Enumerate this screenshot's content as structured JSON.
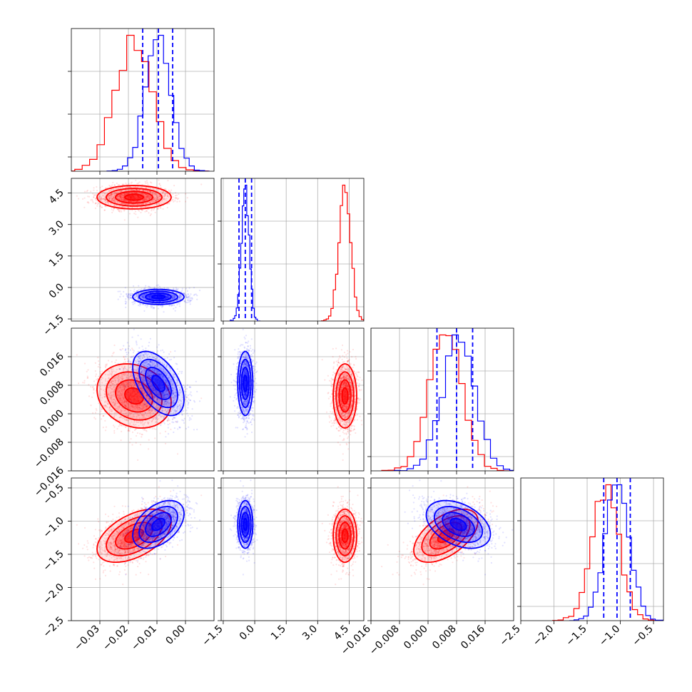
{
  "chart_data": {
    "type": "corner",
    "title": "",
    "parameters": [
      {
        "range": [
          -0.04,
          0.01
        ],
        "ticks": [
          -0.03,
          -0.02,
          -0.01,
          0.0
        ],
        "tick_labels": [
          "−0.03",
          "−0.02",
          "−0.01",
          "0.00"
        ]
      },
      {
        "range": [
          -1.6,
          5.2
        ],
        "ticks": [
          -1.5,
          0.0,
          1.5,
          3.0,
          4.5
        ],
        "tick_labels": [
          "−1.5",
          "0.0",
          "1.5",
          "3.0",
          "4.5"
        ]
      },
      {
        "range": [
          -0.016,
          0.024
        ],
        "ticks": [
          -0.016,
          -0.008,
          0.0,
          0.008,
          0.016
        ],
        "tick_labels": [
          "−0.016",
          "−0.008",
          "0.000",
          "0.008",
          "0.016"
        ]
      },
      {
        "range": [
          -2.5,
          -0.35
        ],
        "ticks": [
          -2.5,
          -2.0,
          -1.5,
          -1.0,
          -0.5
        ],
        "tick_labels": [
          "−2.5",
          "−2.0",
          "−1.5",
          "−1.0",
          "−0.5"
        ]
      }
    ],
    "series": [
      {
        "color": "#ff0000",
        "mean": [
          -0.018,
          4.3,
          0.005,
          -1.22
        ],
        "std": [
          0.0065,
          0.28,
          0.0045,
          0.2
        ],
        "corr": {
          "0-1": 0.0,
          "0-2": -0.2,
          "0-3": 0.5,
          "1-2": 0.0,
          "1-3": 0.0,
          "2-3": 0.55
        }
      },
      {
        "color": "#0000ff",
        "mean": [
          -0.0095,
          -0.45,
          0.0085,
          -1.05
        ],
        "std": [
          0.0045,
          0.18,
          0.0045,
          0.18
        ],
        "corr": {
          "0-1": 0.0,
          "0-2": -0.5,
          "0-3": 0.45,
          "1-2": 0.0,
          "1-3": 0.0,
          "2-3": -0.4
        }
      }
    ],
    "quantile_lines": {
      "color": "#0000ff",
      "style": "dashed",
      "values": [
        [
          -0.015,
          -0.0095,
          -0.0045
        ],
        [
          -0.75,
          -0.45,
          -0.15
        ],
        [
          0.0025,
          0.008,
          0.0125
        ],
        [
          -1.25,
          -1.05,
          -0.85
        ]
      ]
    },
    "grid": true,
    "legend": "none"
  }
}
